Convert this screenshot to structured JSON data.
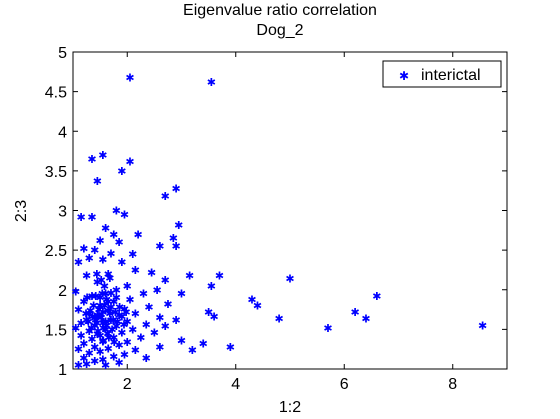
{
  "chart_data": {
    "type": "scatter",
    "title": "Eigenvalue ratio correlation",
    "subtitle": "Dog_2",
    "xlabel": "1:2",
    "ylabel": "2:3",
    "xlim": [
      1.0,
      9.0
    ],
    "ylim": [
      1.0,
      5.0
    ],
    "xticks": [
      2,
      4,
      6,
      8
    ],
    "yticks": [
      1,
      1.5,
      2,
      2.5,
      3,
      3.5,
      4,
      4.5,
      5
    ],
    "ytick_labels": [
      "1",
      "1.5",
      "2",
      "2.5",
      "3",
      "3.5",
      "4",
      "4.5",
      "5"
    ],
    "grid": false,
    "legend_position": "top-right",
    "marker_color": "#0000ff",
    "series": [
      {
        "name": "interictal",
        "points": [
          [
            2.05,
            4.68
          ],
          [
            3.55,
            4.62
          ],
          [
            1.55,
            3.7
          ],
          [
            1.35,
            3.65
          ],
          [
            2.05,
            3.62
          ],
          [
            1.9,
            3.5
          ],
          [
            1.45,
            3.37
          ],
          [
            2.9,
            3.28
          ],
          [
            2.7,
            3.18
          ],
          [
            1.8,
            3.0
          ],
          [
            1.95,
            2.95
          ],
          [
            1.15,
            2.92
          ],
          [
            1.35,
            2.92
          ],
          [
            2.95,
            2.82
          ],
          [
            1.6,
            2.78
          ],
          [
            1.75,
            2.7
          ],
          [
            2.2,
            2.7
          ],
          [
            2.85,
            2.65
          ],
          [
            1.5,
            2.62
          ],
          [
            1.85,
            2.6
          ],
          [
            2.6,
            2.55
          ],
          [
            2.9,
            2.55
          ],
          [
            1.2,
            2.52
          ],
          [
            1.4,
            2.5
          ],
          [
            1.7,
            2.46
          ],
          [
            2.1,
            2.45
          ],
          [
            1.3,
            2.4
          ],
          [
            1.55,
            2.38
          ],
          [
            1.9,
            2.35
          ],
          [
            1.1,
            2.35
          ],
          [
            2.15,
            2.25
          ],
          [
            2.45,
            2.22
          ],
          [
            1.65,
            2.2
          ],
          [
            1.25,
            2.18
          ],
          [
            3.15,
            2.18
          ],
          [
            3.7,
            2.18
          ],
          [
            5.0,
            2.14
          ],
          [
            2.7,
            2.12
          ],
          [
            1.45,
            2.1
          ],
          [
            2.0,
            2.05
          ],
          [
            3.55,
            2.05
          ],
          [
            1.8,
            2.0
          ],
          [
            2.55,
            2.0
          ],
          [
            1.05,
            1.98
          ],
          [
            2.3,
            1.95
          ],
          [
            1.6,
            1.95
          ],
          [
            3.0,
            1.95
          ],
          [
            1.35,
            1.92
          ],
          [
            6.6,
            1.92
          ],
          [
            4.3,
            1.88
          ],
          [
            2.05,
            1.88
          ],
          [
            1.75,
            1.85
          ],
          [
            1.2,
            1.85
          ],
          [
            2.75,
            1.82
          ],
          [
            4.4,
            1.8
          ],
          [
            1.5,
            1.8
          ],
          [
            2.4,
            1.78
          ],
          [
            1.95,
            1.76
          ],
          [
            1.1,
            1.75
          ],
          [
            1.65,
            1.74
          ],
          [
            3.5,
            1.72
          ],
          [
            6.2,
            1.72
          ],
          [
            1.3,
            1.7
          ],
          [
            2.15,
            1.7
          ],
          [
            1.85,
            1.68
          ],
          [
            3.6,
            1.66
          ],
          [
            1.45,
            1.66
          ],
          [
            2.6,
            1.65
          ],
          [
            4.8,
            1.64
          ],
          [
            6.4,
            1.64
          ],
          [
            1.7,
            1.62
          ],
          [
            1.25,
            1.62
          ],
          [
            2.9,
            1.62
          ],
          [
            2.0,
            1.6
          ],
          [
            1.55,
            1.58
          ],
          [
            1.15,
            1.58
          ],
          [
            2.35,
            1.56
          ],
          [
            1.4,
            1.55
          ],
          [
            8.55,
            1.55
          ],
          [
            1.8,
            1.54
          ],
          [
            2.7,
            1.54
          ],
          [
            1.05,
            1.52
          ],
          [
            5.7,
            1.52
          ],
          [
            1.6,
            1.5
          ],
          [
            2.1,
            1.5
          ],
          [
            1.3,
            1.48
          ],
          [
            1.9,
            1.46
          ],
          [
            2.5,
            1.46
          ],
          [
            1.45,
            1.44
          ],
          [
            1.15,
            1.42
          ],
          [
            1.75,
            1.4
          ],
          [
            2.25,
            1.4
          ],
          [
            1.35,
            1.38
          ],
          [
            3.0,
            1.36
          ],
          [
            1.55,
            1.35
          ],
          [
            2.0,
            1.34
          ],
          [
            1.2,
            1.32
          ],
          [
            3.4,
            1.32
          ],
          [
            1.85,
            1.3
          ],
          [
            1.4,
            1.28
          ],
          [
            2.6,
            1.28
          ],
          [
            3.9,
            1.28
          ],
          [
            1.65,
            1.26
          ],
          [
            1.1,
            1.25
          ],
          [
            2.15,
            1.24
          ],
          [
            3.2,
            1.24
          ],
          [
            1.5,
            1.22
          ],
          [
            1.3,
            1.2
          ],
          [
            1.95,
            1.18
          ],
          [
            1.75,
            1.16
          ],
          [
            1.2,
            1.14
          ],
          [
            2.35,
            1.14
          ],
          [
            1.55,
            1.12
          ],
          [
            1.4,
            1.1
          ],
          [
            1.85,
            1.08
          ],
          [
            1.25,
            1.06
          ],
          [
            1.6,
            1.05
          ],
          [
            1.1,
            1.05
          ],
          [
            1.45,
            1.68
          ],
          [
            1.55,
            1.72
          ],
          [
            1.65,
            1.85
          ],
          [
            1.5,
            1.9
          ],
          [
            1.7,
            1.78
          ],
          [
            1.6,
            1.6
          ],
          [
            1.52,
            1.65
          ],
          [
            1.58,
            1.8
          ],
          [
            1.48,
            1.75
          ],
          [
            1.62,
            1.55
          ],
          [
            1.42,
            1.62
          ],
          [
            1.68,
            1.7
          ],
          [
            1.56,
            1.52
          ],
          [
            1.44,
            1.58
          ],
          [
            1.38,
            1.8
          ],
          [
            1.72,
            1.5
          ],
          [
            1.64,
            1.45
          ],
          [
            1.46,
            1.48
          ],
          [
            1.54,
            1.95
          ],
          [
            1.36,
            1.66
          ],
          [
            1.74,
            1.62
          ],
          [
            1.58,
            2.05
          ],
          [
            1.66,
            1.4
          ],
          [
            1.32,
            1.74
          ],
          [
            1.78,
            1.72
          ],
          [
            1.5,
            1.42
          ],
          [
            1.62,
            1.88
          ],
          [
            1.42,
            1.92
          ],
          [
            1.7,
            1.96
          ],
          [
            1.56,
            1.36
          ],
          [
            1.82,
            1.6
          ],
          [
            1.28,
            1.6
          ],
          [
            1.86,
            1.78
          ],
          [
            1.24,
            1.7
          ],
          [
            1.9,
            1.66
          ],
          [
            1.34,
            1.52
          ],
          [
            1.76,
            1.34
          ],
          [
            1.52,
            2.12
          ],
          [
            1.68,
            2.15
          ],
          [
            1.44,
            2.2
          ],
          [
            1.8,
            1.9
          ],
          [
            1.26,
            1.9
          ],
          [
            1.94,
            1.56
          ],
          [
            1.98,
            1.72
          ]
        ]
      }
    ]
  }
}
